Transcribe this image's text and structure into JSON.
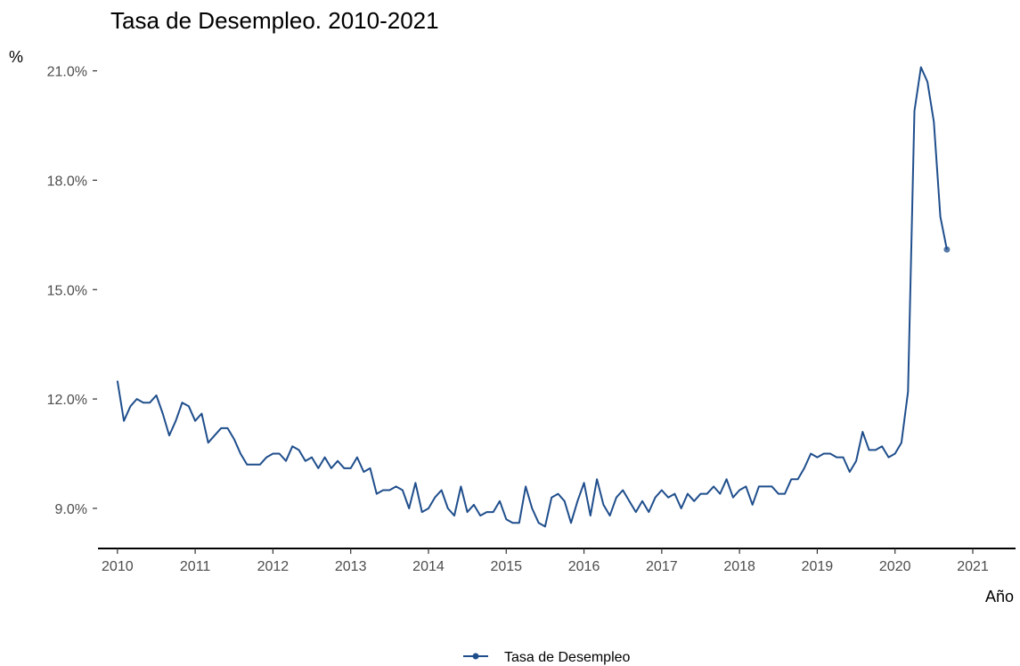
{
  "chart_data": {
    "type": "line",
    "title": "Tasa de Desempleo. 2010-2021",
    "xlabel": "Año",
    "ylabel": "%",
    "x_ticks": [
      "2010",
      "2011",
      "2012",
      "2013",
      "2014",
      "2015",
      "2016",
      "2017",
      "2018",
      "2019",
      "2020",
      "2021"
    ],
    "y_ticks": [
      "9.0%",
      "12.0%",
      "15.0%",
      "18.0%",
      "21.0%"
    ],
    "xlim": [
      2009.75,
      2021.55
    ],
    "ylim": [
      7.9,
      21.6
    ],
    "grid": false,
    "legend_position": "bottom",
    "color": "#1f4e8c",
    "series": [
      {
        "name": "Tasa de Desempleo",
        "x": [
          2010.0,
          2010.083,
          2010.167,
          2010.25,
          2010.333,
          2010.417,
          2010.5,
          2010.583,
          2010.667,
          2010.75,
          2010.833,
          2010.917,
          2011.0,
          2011.083,
          2011.167,
          2011.25,
          2011.333,
          2011.417,
          2011.5,
          2011.583,
          2011.667,
          2011.75,
          2011.833,
          2011.917,
          2012.0,
          2012.083,
          2012.167,
          2012.25,
          2012.333,
          2012.417,
          2012.5,
          2012.583,
          2012.667,
          2012.75,
          2012.833,
          2012.917,
          2013.0,
          2013.083,
          2013.167,
          2013.25,
          2013.333,
          2013.417,
          2013.5,
          2013.583,
          2013.667,
          2013.75,
          2013.833,
          2013.917,
          2014.0,
          2014.083,
          2014.167,
          2014.25,
          2014.333,
          2014.417,
          2014.5,
          2014.583,
          2014.667,
          2014.75,
          2014.833,
          2014.917,
          2015.0,
          2015.083,
          2015.167,
          2015.25,
          2015.333,
          2015.417,
          2015.5,
          2015.583,
          2015.667,
          2015.75,
          2015.833,
          2015.917,
          2016.0,
          2016.083,
          2016.167,
          2016.25,
          2016.333,
          2016.417,
          2016.5,
          2016.583,
          2016.667,
          2016.75,
          2016.833,
          2016.917,
          2017.0,
          2017.083,
          2017.167,
          2017.25,
          2017.333,
          2017.417,
          2017.5,
          2017.583,
          2017.667,
          2017.75,
          2017.833,
          2017.917,
          2018.0,
          2018.083,
          2018.167,
          2018.25,
          2018.333,
          2018.417,
          2018.5,
          2018.583,
          2018.667,
          2018.75,
          2018.833,
          2018.917,
          2019.0,
          2019.083,
          2019.167,
          2019.25,
          2019.333,
          2019.417,
          2019.5,
          2019.583,
          2019.667,
          2019.75,
          2019.833,
          2019.917,
          2020.0,
          2020.083,
          2020.167,
          2020.25,
          2020.333,
          2020.417,
          2020.5,
          2020.583,
          2020.667
        ],
        "values": [
          12.5,
          11.4,
          11.8,
          12.0,
          11.9,
          11.9,
          12.1,
          11.6,
          11.0,
          11.4,
          11.9,
          11.8,
          11.4,
          11.6,
          10.8,
          11.0,
          11.2,
          11.2,
          10.9,
          10.5,
          10.2,
          10.2,
          10.2,
          10.4,
          10.5,
          10.5,
          10.3,
          10.7,
          10.6,
          10.3,
          10.4,
          10.1,
          10.4,
          10.1,
          10.3,
          10.1,
          10.1,
          10.4,
          10.0,
          10.1,
          9.4,
          9.5,
          9.5,
          9.6,
          9.5,
          9.0,
          9.7,
          8.9,
          9.0,
          9.3,
          9.5,
          9.0,
          8.8,
          9.6,
          8.9,
          9.1,
          8.8,
          8.9,
          8.9,
          9.2,
          8.7,
          8.6,
          8.6,
          9.6,
          9.0,
          8.6,
          8.5,
          9.3,
          9.4,
          9.2,
          8.6,
          9.2,
          9.7,
          8.8,
          9.8,
          9.1,
          8.8,
          9.3,
          9.5,
          9.2,
          8.9,
          9.2,
          8.9,
          9.3,
          9.5,
          9.3,
          9.4,
          9.0,
          9.4,
          9.2,
          9.4,
          9.4,
          9.6,
          9.4,
          9.8,
          9.3,
          9.5,
          9.6,
          9.1,
          9.6,
          9.6,
          9.6,
          9.4,
          9.4,
          9.8,
          9.8,
          10.1,
          10.5,
          10.4,
          10.5,
          10.5,
          10.4,
          10.4,
          10.0,
          10.3,
          11.1,
          10.6,
          10.6,
          10.7,
          10.4,
          10.5,
          10.8,
          12.2,
          19.9,
          21.1,
          20.7,
          19.6,
          17.0,
          16.1
        ]
      }
    ]
  }
}
